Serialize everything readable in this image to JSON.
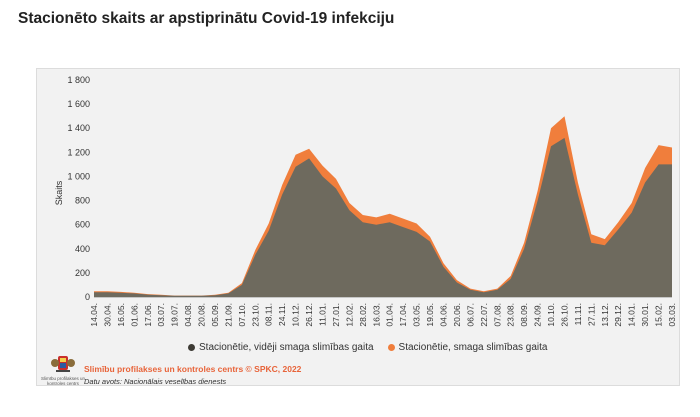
{
  "title": "Stacionēto skaits ar apstiprinātu Covid-19 infekciju",
  "footer": {
    "org": "Slimību profilakses un kontroles centrs © SPKC, 2022",
    "source": "Datu avots: Nacionālais veselības dienests",
    "logo_text": "Slimību profilakses un kontroles centrs"
  },
  "colors": {
    "moderate_series": "#6e6a5e",
    "severe_series": "#f07e3c",
    "title": "#222222"
  },
  "chart_data": {
    "type": "area",
    "title": "",
    "xlabel": "",
    "ylabel": "Skaits",
    "ylim": [
      0,
      1800
    ],
    "yticks": [
      0,
      200,
      400,
      600,
      800,
      1000,
      1200,
      1400,
      1600,
      1800
    ],
    "ytick_labels": [
      "0",
      "200",
      "400",
      "600",
      "800",
      "1 000",
      "1 200",
      "1 400",
      "1 600",
      "1 800"
    ],
    "grid": false,
    "legend_placement": "bottom",
    "x_labels": [
      "14.04.",
      "30.04.",
      "16.05.",
      "01.06.",
      "17.06.",
      "03.07.",
      "19.07.",
      "04.08.",
      "20.08.",
      "05.09.",
      "21.09.",
      "07.10.",
      "23.10.",
      "08.11.",
      "24.11.",
      "10.12.",
      "26.12.",
      "11.01.",
      "27.01.",
      "12.02.",
      "28.02.",
      "16.03.",
      "01.04.",
      "17.04.",
      "03.05.",
      "19.05.",
      "04.06.",
      "20.06.",
      "06.07.",
      "22.07.",
      "07.08.",
      "23.08.",
      "08.09.",
      "24.09.",
      "10.10.",
      "26.10.",
      "11.11.",
      "27.11.",
      "13.12.",
      "29.12.",
      "14.01.",
      "30.01.",
      "15.02.",
      "03.03."
    ],
    "series": [
      {
        "name": "Stacionētie, vidēji smaga slimības gaita",
        "values": [
          40,
          40,
          35,
          30,
          20,
          15,
          10,
          10,
          10,
          15,
          30,
          100,
          350,
          550,
          850,
          1080,
          1150,
          1000,
          900,
          720,
          620,
          600,
          620,
          580,
          540,
          460,
          250,
          120,
          60,
          40,
          60,
          150,
          400,
          800,
          1250,
          1320,
          850,
          450,
          430,
          560,
          700,
          950,
          1100,
          1100
        ]
      },
      {
        "name": "Stacionētie, smaga slimības gaita",
        "values": [
          48,
          48,
          42,
          36,
          24,
          18,
          12,
          12,
          12,
          18,
          36,
          115,
          390,
          610,
          930,
          1180,
          1230,
          1090,
          980,
          780,
          680,
          660,
          690,
          650,
          610,
          500,
          280,
          140,
          70,
          48,
          70,
          175,
          450,
          880,
          1400,
          1500,
          950,
          520,
          480,
          620,
          780,
          1070,
          1260,
          1240
        ]
      }
    ]
  }
}
